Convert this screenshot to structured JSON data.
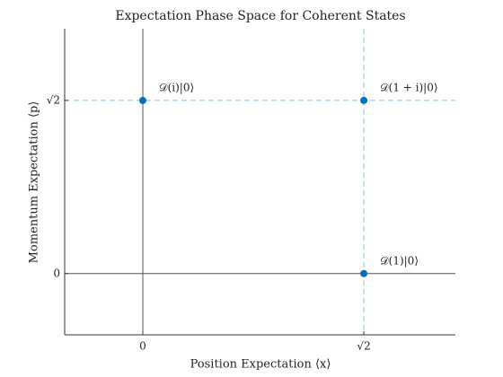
{
  "chart_data": {
    "type": "scatter",
    "title": "Expectation Phase Space for Coherent States",
    "x_label": "Position Expectation ⟨x⟩",
    "y_label": "Momentum Expectation ⟨p⟩",
    "xlim": [
      -0.5,
      2.0
    ],
    "ylim": [
      -0.5,
      2.0
    ],
    "xticks": [
      0,
      {
        "value": 1.4142,
        "label": "√2"
      }
    ],
    "yticks": [
      0,
      {
        "value": 1.4142,
        "label": "√2"
      }
    ],
    "x": [
      1.4142,
      0,
      1.4142
    ],
    "values": [
      0,
      1.4142,
      1.4142
    ],
    "point_labels": [
      "𝒟(1)|0⟩",
      "𝒟(i)|0⟩",
      "𝒟(1 + i)|0⟩"
    ],
    "color": "#0072bd",
    "vlines": [
      {
        "x": 0,
        "style": "solid",
        "color": "#555555"
      },
      {
        "x": 1.4142,
        "style": "dashed",
        "color": "#7ec8e3"
      }
    ],
    "hlines": [
      {
        "y": 0,
        "style": "solid",
        "color": "#555555"
      },
      {
        "y": 1.4142,
        "style": "dashed",
        "color": "#7ec8e3"
      }
    ]
  }
}
